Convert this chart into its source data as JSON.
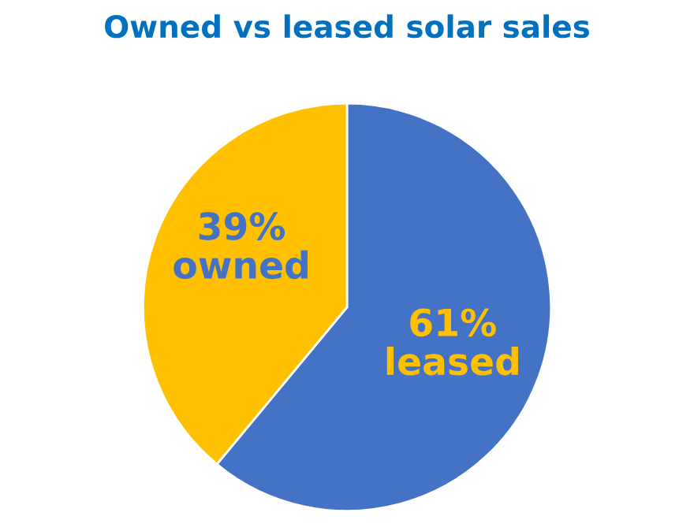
{
  "chart_data": {
    "type": "pie",
    "title": "Owned vs leased solar sales",
    "categories": [
      "leased",
      "owned"
    ],
    "values": [
      61,
      39
    ],
    "value_labels": [
      "61%",
      "39%"
    ],
    "colors": [
      "#4472c4",
      "#ffc000"
    ],
    "legend": false
  }
}
